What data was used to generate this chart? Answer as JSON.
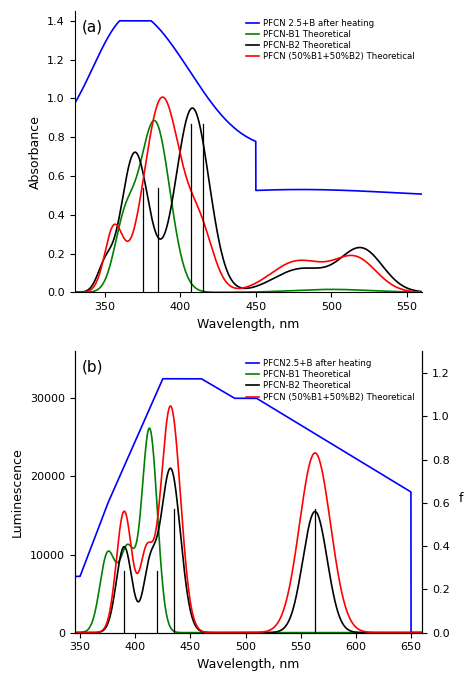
{
  "panel_a": {
    "title": "(a)",
    "xlabel": "Wavelength, nm",
    "ylabel": "Absorbance",
    "xlim": [
      330,
      560
    ],
    "ylim": [
      0,
      1.45
    ],
    "yticks": [
      0.0,
      0.2,
      0.4,
      0.6,
      0.8,
      1.0,
      1.2,
      1.4
    ],
    "xticks": [
      350,
      400,
      450,
      500,
      550
    ],
    "blue_color": "#0000FF",
    "green_color": "#008000",
    "black_color": "#000000",
    "red_color": "#FF0000",
    "legend_labels": [
      "PFCN 2.5+B after heating",
      "PFCN-B1 Theoretical",
      "PFCN-B2 Theoretical",
      "PFCN (50%B1+50%B2) Theoretical"
    ],
    "abs_vlines_short": [
      375,
      385
    ],
    "abs_vlines_tall": [
      407,
      415
    ],
    "abs_vlines_short_ymax": 0.37,
    "abs_vlines_tall_ymax": 0.6
  },
  "panel_b": {
    "title": "(b)",
    "xlabel": "Wavelength, nm",
    "ylabel": "Luminescence",
    "ylabel2": "f",
    "xlim": [
      345,
      660
    ],
    "ylim": [
      0,
      36000
    ],
    "ylim2": [
      0.0,
      1.3
    ],
    "yticks": [
      0,
      10000,
      20000,
      30000
    ],
    "yticks2": [
      0.0,
      0.2,
      0.4,
      0.6,
      0.8,
      1.0,
      1.2
    ],
    "xticks": [
      350,
      400,
      450,
      500,
      550,
      600,
      650
    ],
    "blue_color": "#0000FF",
    "green_color": "#008000",
    "black_color": "#000000",
    "red_color": "#FF0000",
    "legend_labels": [
      "PFCN2.5+B after heating",
      "PFCN-B1 Theoretical",
      "PFCN-B2 Theoretical",
      "PFCN (50%B1+50%B2) Theoretical"
    ],
    "lum_vlines_short": [
      390,
      420
    ],
    "lum_vlines_tall": [
      435,
      563
    ],
    "lum_vlines_short_ymax": 0.22,
    "lum_vlines_tall_ymax": 0.44
  }
}
